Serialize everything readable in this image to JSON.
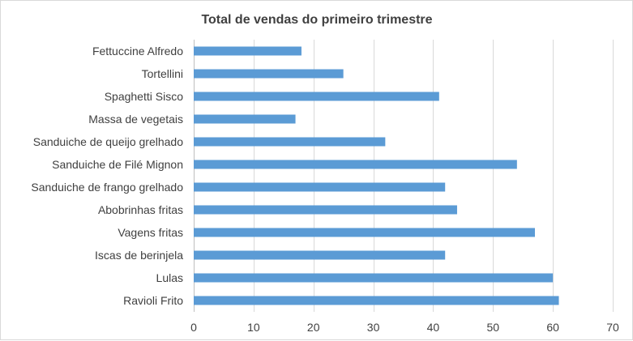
{
  "chart_data": {
    "type": "bar",
    "orientation": "horizontal",
    "title": "Total de vendas do primeiro trimestre",
    "categories": [
      "Fettuccine Alfredo",
      "Tortellini",
      "Spaghetti Sisco",
      "Massa de vegetais",
      "Sanduiche de queijo grelhado",
      "Sanduiche de Filé Mignon",
      "Sanduiche de frango grelhado",
      "Abobrinhas fritas",
      "Vagens fritas",
      "Iscas de berinjela",
      "Lulas",
      "Ravioli Frito"
    ],
    "values": [
      18,
      25,
      41,
      17,
      32,
      54,
      42,
      44,
      57,
      42,
      60,
      61
    ],
    "xlim": [
      0,
      70
    ],
    "xticks": [
      0,
      10,
      20,
      30,
      40,
      50,
      60,
      70
    ],
    "grid": true,
    "legend": "none",
    "bar_color": "#5b9bd5"
  }
}
